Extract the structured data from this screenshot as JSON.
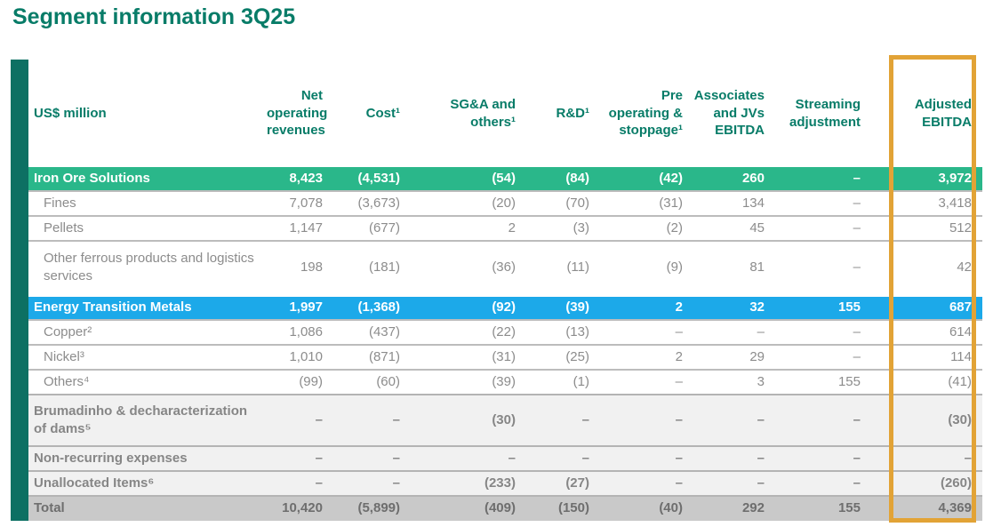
{
  "title": "Segment information 3Q25",
  "table": {
    "unit_label": "US$ million",
    "columns": [
      "Net operating revenues",
      "Cost¹",
      "SG&A and others¹",
      "R&D¹",
      "Pre operating & stoppage¹",
      "Associates and JVs EBITDA",
      "Streaming adjustment",
      "Adjusted EBITDA"
    ],
    "rows": [
      {
        "label": "Iron Ore Solutions",
        "type": "section-green",
        "values": [
          "8,423",
          "(4,531)",
          "(54)",
          "(84)",
          "(42)",
          "260",
          "–",
          "3,972"
        ]
      },
      {
        "label": "Fines",
        "type": "sub",
        "values": [
          "7,078",
          "(3,673)",
          "(20)",
          "(70)",
          "(31)",
          "134",
          "–",
          "3,418"
        ]
      },
      {
        "label": "Pellets",
        "type": "sub",
        "values": [
          "1,147",
          "(677)",
          "2",
          "(3)",
          "(2)",
          "45",
          "–",
          "512"
        ]
      },
      {
        "label": "Other ferrous products and logistics services",
        "type": "sub",
        "values": [
          "198",
          "(181)",
          "(36)",
          "(11)",
          "(9)",
          "81",
          "–",
          "42"
        ]
      },
      {
        "label": "Energy Transition Metals",
        "type": "section-blue",
        "values": [
          "1,997",
          "(1,368)",
          "(92)",
          "(39)",
          "2",
          "32",
          "155",
          "687"
        ]
      },
      {
        "label": "Copper²",
        "type": "sub",
        "values": [
          "1,086",
          "(437)",
          "(22)",
          "(13)",
          "–",
          "–",
          "–",
          "614"
        ]
      },
      {
        "label": "Nickel³",
        "type": "sub",
        "values": [
          "1,010",
          "(871)",
          "(31)",
          "(25)",
          "2",
          "29",
          "–",
          "114"
        ]
      },
      {
        "label": "Others⁴",
        "type": "sub",
        "values": [
          "(99)",
          "(60)",
          "(39)",
          "(1)",
          "–",
          "3",
          "155",
          "(41)"
        ]
      },
      {
        "label": "Brumadinho & decharacterization of dams⁵",
        "type": "gray",
        "values": [
          "–",
          "–",
          "(30)",
          "–",
          "–",
          "–",
          "–",
          "(30)"
        ]
      },
      {
        "label": "Non-recurring expenses",
        "type": "gray",
        "values": [
          "–",
          "–",
          "–",
          "–",
          "–",
          "–",
          "–",
          "–"
        ]
      },
      {
        "label": "Unallocated Items⁶",
        "type": "gray",
        "values": [
          "–",
          "–",
          "(233)",
          "(27)",
          "–",
          "–",
          "–",
          "(260)"
        ]
      },
      {
        "label": "Total",
        "type": "total",
        "values": [
          "10,420",
          "(5,899)",
          "(409)",
          "(150)",
          "(40)",
          "292",
          "155",
          "4,369"
        ]
      }
    ]
  },
  "highlight": {
    "column": "Adjusted EBITDA",
    "border_color": "#e2a336"
  },
  "colors": {
    "brand_teal": "#087c68",
    "sidebar_teal": "#0d7063",
    "iron_ore_row_green": "#2ab78a",
    "energy_metals_row_blue": "#1ca9e9",
    "highlight_gold": "#e2a336",
    "total_row_gray": "#c9c9c9"
  }
}
